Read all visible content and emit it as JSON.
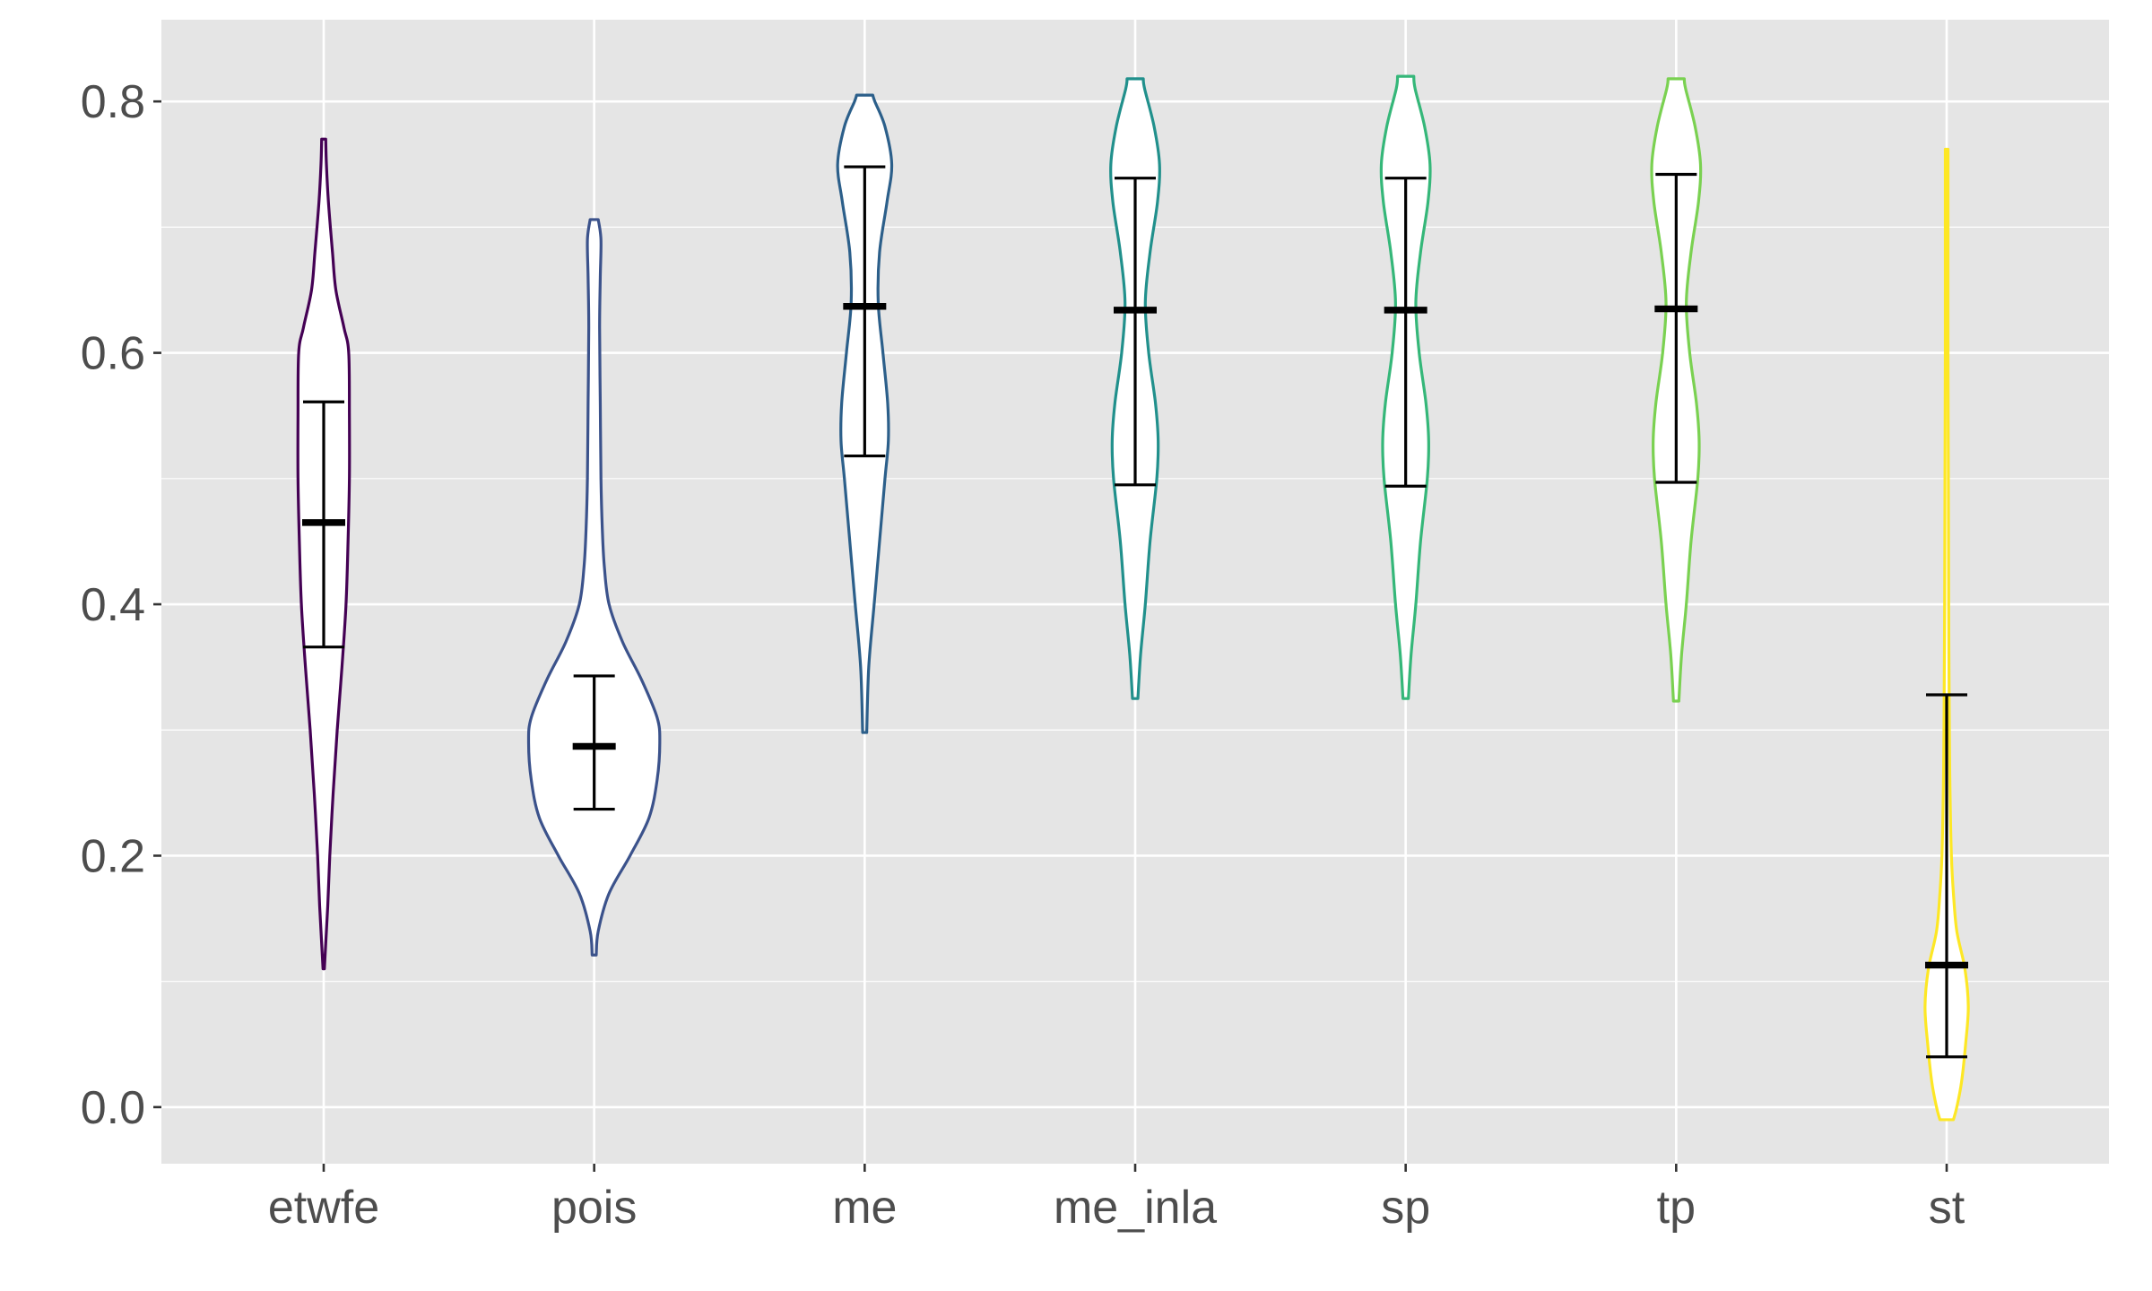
{
  "chart_data": {
    "type": "violin",
    "title": "",
    "xlabel": "",
    "ylabel": "",
    "ylim": [
      -0.045,
      0.865
    ],
    "yticks": [
      0.0,
      0.2,
      0.4,
      0.6,
      0.8
    ],
    "ytick_labels": [
      "0.0",
      "0.2",
      "0.4",
      "0.6",
      "0.8"
    ],
    "grid": true,
    "legend": "none",
    "categories": [
      "etwfe",
      "pois",
      "me",
      "me_inla",
      "sp",
      "tp",
      "st"
    ],
    "series": [
      {
        "category": "etwfe",
        "color": "#440154",
        "min": 0.11,
        "max": 0.77,
        "mean": 0.465,
        "ci_low": 0.366,
        "ci_high": 0.561,
        "density": [
          [
            0.11,
            0.01
          ],
          [
            0.13,
            0.03
          ],
          [
            0.16,
            0.06
          ],
          [
            0.2,
            0.09
          ],
          [
            0.25,
            0.14
          ],
          [
            0.3,
            0.2
          ],
          [
            0.35,
            0.27
          ],
          [
            0.4,
            0.33
          ],
          [
            0.45,
            0.36
          ],
          [
            0.5,
            0.38
          ],
          [
            0.55,
            0.38
          ],
          [
            0.6,
            0.37
          ],
          [
            0.62,
            0.3
          ],
          [
            0.65,
            0.18
          ],
          [
            0.68,
            0.13
          ],
          [
            0.72,
            0.07
          ],
          [
            0.75,
            0.04
          ],
          [
            0.77,
            0.03
          ]
        ]
      },
      {
        "category": "pois",
        "color": "#3b528b",
        "min": 0.121,
        "max": 0.706,
        "mean": 0.287,
        "ci_low": 0.237,
        "ci_high": 0.343,
        "density": [
          [
            0.121,
            0.03
          ],
          [
            0.14,
            0.06
          ],
          [
            0.17,
            0.22
          ],
          [
            0.2,
            0.53
          ],
          [
            0.23,
            0.81
          ],
          [
            0.26,
            0.93
          ],
          [
            0.29,
            0.97
          ],
          [
            0.31,
            0.93
          ],
          [
            0.34,
            0.7
          ],
          [
            0.37,
            0.42
          ],
          [
            0.4,
            0.22
          ],
          [
            0.43,
            0.15
          ],
          [
            0.46,
            0.12
          ],
          [
            0.5,
            0.1
          ],
          [
            0.56,
            0.09
          ],
          [
            0.62,
            0.08
          ],
          [
            0.66,
            0.09
          ],
          [
            0.69,
            0.1
          ],
          [
            0.706,
            0.06
          ]
        ]
      },
      {
        "category": "me",
        "color": "#2c5f8a",
        "min": 0.298,
        "max": 0.805,
        "mean": 0.637,
        "ci_low": 0.518,
        "ci_high": 0.748,
        "density": [
          [
            0.298,
            0.03
          ],
          [
            0.35,
            0.06
          ],
          [
            0.4,
            0.14
          ],
          [
            0.45,
            0.22
          ],
          [
            0.5,
            0.3
          ],
          [
            0.53,
            0.35
          ],
          [
            0.56,
            0.34
          ],
          [
            0.6,
            0.27
          ],
          [
            0.64,
            0.2
          ],
          [
            0.68,
            0.22
          ],
          [
            0.72,
            0.33
          ],
          [
            0.75,
            0.4
          ],
          [
            0.78,
            0.3
          ],
          [
            0.8,
            0.15
          ],
          [
            0.805,
            0.12
          ]
        ]
      },
      {
        "category": "me_inla",
        "color": "#21908c",
        "min": 0.325,
        "max": 0.818,
        "mean": 0.634,
        "ci_low": 0.495,
        "ci_high": 0.739,
        "density": [
          [
            0.325,
            0.04
          ],
          [
            0.36,
            0.08
          ],
          [
            0.4,
            0.15
          ],
          [
            0.45,
            0.22
          ],
          [
            0.5,
            0.32
          ],
          [
            0.53,
            0.34
          ],
          [
            0.56,
            0.3
          ],
          [
            0.6,
            0.2
          ],
          [
            0.64,
            0.15
          ],
          [
            0.68,
            0.22
          ],
          [
            0.72,
            0.33
          ],
          [
            0.75,
            0.36
          ],
          [
            0.78,
            0.28
          ],
          [
            0.81,
            0.14
          ],
          [
            0.818,
            0.12
          ]
        ]
      },
      {
        "category": "sp",
        "color": "#35b779",
        "min": 0.325,
        "max": 0.82,
        "mean": 0.634,
        "ci_low": 0.494,
        "ci_high": 0.739,
        "density": [
          [
            0.325,
            0.04
          ],
          [
            0.36,
            0.08
          ],
          [
            0.4,
            0.15
          ],
          [
            0.45,
            0.22
          ],
          [
            0.5,
            0.32
          ],
          [
            0.53,
            0.34
          ],
          [
            0.56,
            0.3
          ],
          [
            0.6,
            0.2
          ],
          [
            0.64,
            0.15
          ],
          [
            0.68,
            0.22
          ],
          [
            0.72,
            0.33
          ],
          [
            0.75,
            0.36
          ],
          [
            0.78,
            0.28
          ],
          [
            0.81,
            0.14
          ],
          [
            0.82,
            0.12
          ]
        ]
      },
      {
        "category": "tp",
        "color": "#7ad151",
        "min": 0.323,
        "max": 0.818,
        "mean": 0.635,
        "ci_low": 0.497,
        "ci_high": 0.742,
        "density": [
          [
            0.323,
            0.04
          ],
          [
            0.36,
            0.08
          ],
          [
            0.4,
            0.15
          ],
          [
            0.45,
            0.22
          ],
          [
            0.5,
            0.32
          ],
          [
            0.53,
            0.34
          ],
          [
            0.56,
            0.3
          ],
          [
            0.6,
            0.2
          ],
          [
            0.64,
            0.15
          ],
          [
            0.68,
            0.22
          ],
          [
            0.72,
            0.33
          ],
          [
            0.75,
            0.36
          ],
          [
            0.78,
            0.28
          ],
          [
            0.81,
            0.14
          ],
          [
            0.818,
            0.12
          ]
        ]
      },
      {
        "category": "st",
        "color": "#fde725",
        "min": -0.01,
        "max": 0.762,
        "mean": 0.113,
        "ci_low": 0.04,
        "ci_high": 0.328,
        "density": [
          [
            -0.01,
            0.1
          ],
          [
            0.0,
            0.15
          ],
          [
            0.02,
            0.22
          ],
          [
            0.05,
            0.28
          ],
          [
            0.08,
            0.32
          ],
          [
            0.11,
            0.27
          ],
          [
            0.14,
            0.15
          ],
          [
            0.17,
            0.1
          ],
          [
            0.2,
            0.07
          ],
          [
            0.25,
            0.05
          ],
          [
            0.3,
            0.04
          ],
          [
            0.4,
            0.03
          ],
          [
            0.5,
            0.025
          ],
          [
            0.6,
            0.02
          ],
          [
            0.7,
            0.02
          ],
          [
            0.762,
            0.02
          ]
        ]
      }
    ]
  }
}
